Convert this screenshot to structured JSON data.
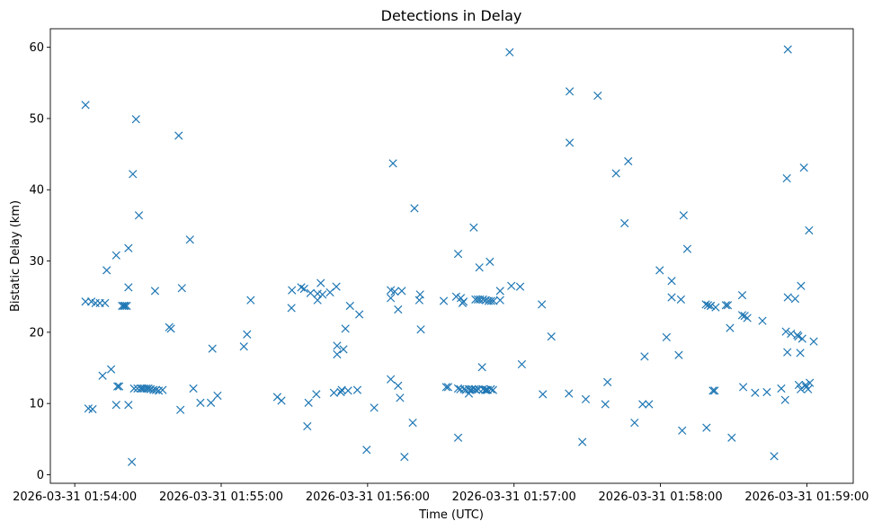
{
  "chart_data": {
    "type": "scatter",
    "title": "Detections in Delay",
    "xlabel": "Time (UTC)",
    "ylabel": "Bistatic Delay (km)",
    "marker": "x",
    "color": "#1f77b4",
    "grid": false,
    "xlim_seconds_from_start": [
      -10,
      319
    ],
    "ylim": [
      -1.2,
      62.6
    ],
    "x_ticks": [
      {
        "seconds": 0,
        "label": "2026-03-31 01:54:00"
      },
      {
        "seconds": 60,
        "label": "2026-03-31 01:55:00"
      },
      {
        "seconds": 120,
        "label": "2026-03-31 01:56:00"
      },
      {
        "seconds": 180,
        "label": "2026-03-31 01:57:00"
      },
      {
        "seconds": 240,
        "label": "2026-03-31 01:58:00"
      },
      {
        "seconds": 300,
        "label": "2026-03-31 01:59:00"
      }
    ],
    "y_ticks": [
      {
        "value": 0,
        "label": "0"
      },
      {
        "value": 10,
        "label": "10"
      },
      {
        "value": 20,
        "label": "20"
      },
      {
        "value": 30,
        "label": "30"
      },
      {
        "value": 40,
        "label": "40"
      },
      {
        "value": 50,
        "label": "50"
      },
      {
        "value": 60,
        "label": "60"
      }
    ],
    "series": [
      {
        "name": "detections",
        "points": [
          [
            4.4,
            51.9
          ],
          [
            4.4,
            24.3
          ],
          [
            5.6,
            9.3
          ],
          [
            6.8,
            24.3
          ],
          [
            7.3,
            9.2
          ],
          [
            8.5,
            24.1
          ],
          [
            10.3,
            24.1
          ],
          [
            11.4,
            13.9
          ],
          [
            12.4,
            24.1
          ],
          [
            13.1,
            28.7
          ],
          [
            14.9,
            14.8
          ],
          [
            17.0,
            9.8
          ],
          [
            17.0,
            30.8
          ],
          [
            17.5,
            12.4
          ],
          [
            18.2,
            12.4
          ],
          [
            19.4,
            23.7
          ],
          [
            20.1,
            23.7
          ],
          [
            20.6,
            23.7
          ],
          [
            21.3,
            23.7
          ],
          [
            22.0,
            9.8
          ],
          [
            22.0,
            26.3
          ],
          [
            22.0,
            31.8
          ],
          [
            23.4,
            1.8
          ],
          [
            23.8,
            42.2
          ],
          [
            24.3,
            12.1
          ],
          [
            25.1,
            49.9
          ],
          [
            25.7,
            12.1
          ],
          [
            26.3,
            36.4
          ],
          [
            27.0,
            12.1
          ],
          [
            27.7,
            12.1
          ],
          [
            28.5,
            12.1
          ],
          [
            29.4,
            12.1
          ],
          [
            30.2,
            12.1
          ],
          [
            31.1,
            12.0
          ],
          [
            32.3,
            11.9
          ],
          [
            32.9,
            25.8
          ],
          [
            33.3,
            11.9
          ],
          [
            34.4,
            11.8
          ],
          [
            36.0,
            11.9
          ],
          [
            38.7,
            20.7
          ],
          [
            39.4,
            20.5
          ],
          [
            42.6,
            47.6
          ],
          [
            43.3,
            9.1
          ],
          [
            43.9,
            26.2
          ],
          [
            47.2,
            33.0
          ],
          [
            48.6,
            12.1
          ],
          [
            51.5,
            10.1
          ],
          [
            55.8,
            10.1
          ],
          [
            56.4,
            17.7
          ],
          [
            58.5,
            11.1
          ],
          [
            69.3,
            18.0
          ],
          [
            70.6,
            19.7
          ],
          [
            72.1,
            24.5
          ],
          [
            83.0,
            10.9
          ],
          [
            84.7,
            10.4
          ],
          [
            88.8,
            23.4
          ],
          [
            89.0,
            25.9
          ],
          [
            92.8,
            26.3
          ],
          [
            94.0,
            26.1
          ],
          [
            95.3,
            6.8
          ],
          [
            95.8,
            10.1
          ],
          [
            96.6,
            25.5
          ],
          [
            99.0,
            11.3
          ],
          [
            99.5,
            25.4
          ],
          [
            99.5,
            24.5
          ],
          [
            100.8,
            26.9
          ],
          [
            101.5,
            25.3
          ],
          [
            104.6,
            25.6
          ],
          [
            106.2,
            11.5
          ],
          [
            107.2,
            26.4
          ],
          [
            107.5,
            18.1
          ],
          [
            107.5,
            16.9
          ],
          [
            109.0,
            11.6
          ],
          [
            109.4,
            11.9
          ],
          [
            110.1,
            17.6
          ],
          [
            110.9,
            20.5
          ],
          [
            112.0,
            11.8
          ],
          [
            112.8,
            23.7
          ],
          [
            115.8,
            11.9
          ],
          [
            116.6,
            22.5
          ],
          [
            119.6,
            3.5
          ],
          [
            122.7,
            9.4
          ],
          [
            129.5,
            13.4
          ],
          [
            129.5,
            24.8
          ],
          [
            129.5,
            25.9
          ],
          [
            130.4,
            43.7
          ],
          [
            131.1,
            25.7
          ],
          [
            132.5,
            23.2
          ],
          [
            132.5,
            12.5
          ],
          [
            133.3,
            10.8
          ],
          [
            134.0,
            25.8
          ],
          [
            135.1,
            2.5
          ],
          [
            138.5,
            7.3
          ],
          [
            139.2,
            37.4
          ],
          [
            141.2,
            24.5
          ],
          [
            141.5,
            25.3
          ],
          [
            141.8,
            20.4
          ],
          [
            151.2,
            24.4
          ],
          [
            152.2,
            12.3
          ],
          [
            153.0,
            12.3
          ],
          [
            156.3,
            25.0
          ],
          [
            157.1,
            31.0
          ],
          [
            157.1,
            12.1
          ],
          [
            157.1,
            5.2
          ],
          [
            158.0,
            12.0
          ],
          [
            158.2,
            24.8
          ],
          [
            158.9,
            24.1
          ],
          [
            159.3,
            24.3
          ],
          [
            159.5,
            12.0
          ],
          [
            160.2,
            11.9
          ],
          [
            161.5,
            12.0
          ],
          [
            161.5,
            11.4
          ],
          [
            162.2,
            11.9
          ],
          [
            162.9,
            12.0
          ],
          [
            163.5,
            34.7
          ],
          [
            163.9,
            12.0
          ],
          [
            164.2,
            24.6
          ],
          [
            164.5,
            11.9
          ],
          [
            165.2,
            24.6
          ],
          [
            165.5,
            12.0
          ],
          [
            165.8,
            29.1
          ],
          [
            166.1,
            24.6
          ],
          [
            166.9,
            15.1
          ],
          [
            167.3,
            24.6
          ],
          [
            167.3,
            12.0
          ],
          [
            168.2,
            11.9
          ],
          [
            168.4,
            24.5
          ],
          [
            168.7,
            11.9
          ],
          [
            169.2,
            11.9
          ],
          [
            169.6,
            24.4
          ],
          [
            170.1,
            29.9
          ],
          [
            170.5,
            12.0
          ],
          [
            170.6,
            24.4
          ],
          [
            171.4,
            11.9
          ],
          [
            171.6,
            24.4
          ],
          [
            174.3,
            25.8
          ],
          [
            174.3,
            24.5
          ],
          [
            178.2,
            59.3
          ],
          [
            178.9,
            26.5
          ],
          [
            182.5,
            26.4
          ],
          [
            183.2,
            15.5
          ],
          [
            191.4,
            23.9
          ],
          [
            191.8,
            11.3
          ],
          [
            195.3,
            19.4
          ],
          [
            202.5,
            11.4
          ],
          [
            202.8,
            46.6
          ],
          [
            202.8,
            53.8
          ],
          [
            208.0,
            4.6
          ],
          [
            209.4,
            10.6
          ],
          [
            214.3,
            53.2
          ],
          [
            217.4,
            9.9
          ],
          [
            218.3,
            13.0
          ],
          [
            221.8,
            42.3
          ],
          [
            225.3,
            35.3
          ],
          [
            226.8,
            44.0
          ],
          [
            229.4,
            7.3
          ],
          [
            232.7,
            9.9
          ],
          [
            233.5,
            16.6
          ],
          [
            235.3,
            9.9
          ],
          [
            239.7,
            28.7
          ],
          [
            242.5,
            19.3
          ],
          [
            244.6,
            24.9
          ],
          [
            244.6,
            27.2
          ],
          [
            247.5,
            16.8
          ],
          [
            248.4,
            24.6
          ],
          [
            248.9,
            6.2
          ],
          [
            249.5,
            36.4
          ],
          [
            251.0,
            31.7
          ],
          [
            258.6,
            23.9
          ],
          [
            258.9,
            6.6
          ],
          [
            259.5,
            23.8
          ],
          [
            260.6,
            23.7
          ],
          [
            260.6,
            23.7
          ],
          [
            261.5,
            11.8
          ],
          [
            262.2,
            11.8
          ],
          [
            262.6,
            23.5
          ],
          [
            266.8,
            23.8
          ],
          [
            267.6,
            23.8
          ],
          [
            268.5,
            20.6
          ],
          [
            269.2,
            5.2
          ],
          [
            273.5,
            25.2
          ],
          [
            273.5,
            22.4
          ],
          [
            273.9,
            12.3
          ],
          [
            274.5,
            22.3
          ],
          [
            275.6,
            22.0
          ],
          [
            278.8,
            11.5
          ],
          [
            281.8,
            21.6
          ],
          [
            283.6,
            11.6
          ],
          [
            286.6,
            2.6
          ],
          [
            289.5,
            12.1
          ],
          [
            291.1,
            10.5
          ],
          [
            291.4,
            20.1
          ],
          [
            291.8,
            41.6
          ],
          [
            292.0,
            17.2
          ],
          [
            292.2,
            59.7
          ],
          [
            292.2,
            24.9
          ],
          [
            293.5,
            19.8
          ],
          [
            295.2,
            24.7
          ],
          [
            296.1,
            19.6
          ],
          [
            296.5,
            19.4
          ],
          [
            296.7,
            12.6
          ],
          [
            297.3,
            17.1
          ],
          [
            297.5,
            12.0
          ],
          [
            297.6,
            26.5
          ],
          [
            298.1,
            19.1
          ],
          [
            298.8,
            43.1
          ],
          [
            299.5,
            12.6
          ],
          [
            299.7,
            12.3
          ],
          [
            300.5,
            12.0
          ],
          [
            300.9,
            34.3
          ],
          [
            301.2,
            12.9
          ],
          [
            302.8,
            18.7
          ]
        ]
      }
    ]
  }
}
